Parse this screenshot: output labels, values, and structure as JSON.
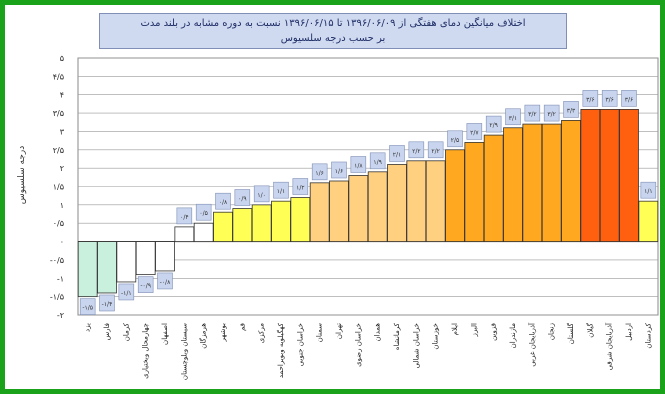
{
  "chart_data": {
    "type": "bar",
    "title": "اختلاف میانگین دمای هفتگی از ۱۳۹۶/۰۶/۰۹ تا ۱۳۹۶/۰۶/۱۵ نسبت به دوره مشابه در بلند مدت",
    "subtitle": "بر حسب درجه سلسیوس",
    "ylabel": "درجه سلسیوس",
    "ylim": [
      -2,
      5
    ],
    "yticks": [
      "۵",
      "۴/۵",
      "۴",
      "۳/۵",
      "۳",
      "۲/۵",
      "۲",
      "۱/۵",
      "۱",
      "۰/۵",
      "۰",
      "-۰/۵",
      "-۱",
      "-۱/۵",
      "-۲"
    ],
    "categories": [
      "یزد",
      "فارس",
      "کرمان",
      "چهارمحال وبختیاری",
      "اصفهان",
      "سیستان وبلوچستان",
      "هرمزگان",
      "بوشهر",
      "قم",
      "مرکزی",
      "کهگیلویه وبویراحمد",
      "خراسان جنوبی",
      "سمنان",
      "تهران",
      "خراسان رضوی",
      "همدان",
      "کرمانشاه",
      "خراسان شمالی",
      "خوزستان",
      "ایلام",
      "البرز",
      "قزوین",
      "مازندران",
      "آذربایجان غربی",
      "زنجان",
      "گلستان",
      "گیلان",
      "آذربایجان شرقی",
      "اردبیل",
      "کردستان"
    ],
    "values": [
      -1.5,
      -1.4,
      -1.1,
      -0.9,
      -0.8,
      0.4,
      0.5,
      0.8,
      0.9,
      1.0,
      1.1,
      1.2,
      1.6,
      1.65,
      1.8,
      1.9,
      2.1,
      2.2,
      2.2,
      2.5,
      2.7,
      2.9,
      3.1,
      3.2,
      3.2,
      3.3,
      3.6,
      3.6,
      3.6,
      1.1
    ],
    "data_labels": [
      "-۱/۵",
      "-۱/۴",
      "-۱/۱",
      "-۰/۹",
      "-۰/۸",
      "۰/۴",
      "۰/۵",
      "۰/۸",
      "۰/۹",
      "۱/۰",
      "۱/۱",
      "۱/۲",
      "۱/۶",
      "۱/۶",
      "۱/۸",
      "۱/۹",
      "۲/۱",
      "۲/۲",
      "۲/۲",
      "۲/۵",
      "۲/۷",
      "۲/۹",
      "۳/۱",
      "۳/۲",
      "۳/۲",
      "۳/۳",
      "۳/۶",
      "۳/۶",
      "۳/۶",
      "۱/۱"
    ],
    "colors": [
      "#c8f0dc",
      "#c8f0dc",
      "#ffffff",
      "#ffffff",
      "#ffffff",
      "#ffffff",
      "#ffffff",
      "#ffff55",
      "#ffff55",
      "#ffff55",
      "#ffff55",
      "#ffff55",
      "#ffd080",
      "#ffd080",
      "#ffd080",
      "#ffd080",
      "#ffd080",
      "#ffd080",
      "#ffd080",
      "#ffa820",
      "#ffa820",
      "#ffa820",
      "#ffa820",
      "#ffa820",
      "#ffa820",
      "#ffa820",
      "#ff6010",
      "#ff6010",
      "#ff6010",
      "#ffff55"
    ],
    "grid": true
  },
  "colors": {
    "frame": "#1aa31a",
    "title_bg": "#cfd9f0"
  }
}
